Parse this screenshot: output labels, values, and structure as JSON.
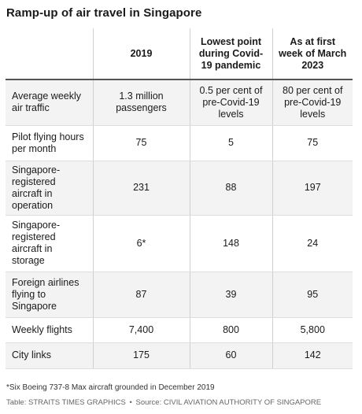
{
  "title": "Ramp-up of air travel in Singapore",
  "table": {
    "headers": [
      "",
      "2019",
      "Lowest point during Covid-19 pandemic",
      "As at first week of March 2023"
    ],
    "rows": [
      {
        "label": "Average weekly air traffic",
        "cells": [
          "1.3 million passengers",
          "0.5 per cent of pre-Covid-19 levels",
          "80 per cent of pre-Covid-19 levels"
        ]
      },
      {
        "label": "Pilot flying hours per month",
        "cells": [
          "75",
          "5",
          "75"
        ]
      },
      {
        "label": "Singapore-registered aircraft in operation",
        "cells": [
          "231",
          "88",
          "197"
        ]
      },
      {
        "label": "Singapore-registered aircraft in storage",
        "cells": [
          "6*",
          "148",
          "24"
        ]
      },
      {
        "label": "Foreign airlines flying to Singapore",
        "cells": [
          "87",
          "39",
          "95"
        ]
      },
      {
        "label": "Weekly flights",
        "cells": [
          "7,400",
          "800",
          "5,800"
        ]
      },
      {
        "label": "City links",
        "cells": [
          "175",
          "60",
          "142"
        ]
      }
    ]
  },
  "footnote": "*Six Boeing 737-8 Max aircraft grounded in December 2019",
  "source": {
    "credit": "Table: STRAITS TIMES GRAPHICS",
    "separator": "•",
    "origin": "Source: CIVIL AVIATION AUTHORITY OF SINGAPORE"
  }
}
